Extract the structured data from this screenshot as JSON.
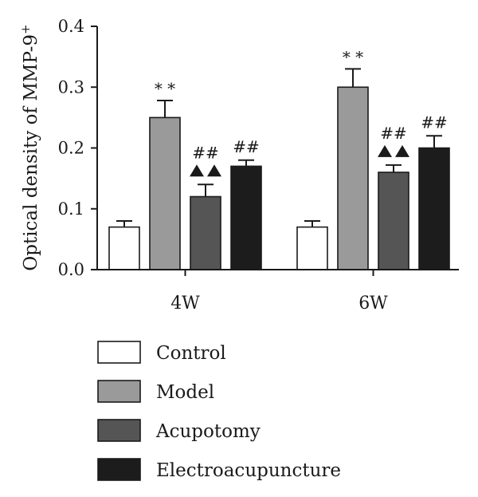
{
  "chart_data": {
    "type": "bar",
    "title": "",
    "xlabel": "",
    "ylabel": "Optical density of MMP-9",
    "ylabel_superscript": "+",
    "ylim": [
      0,
      0.4
    ],
    "yticks": [
      "0.0",
      "0.1",
      "0.2",
      "0.3",
      "0.4"
    ],
    "ytick_values": [
      0,
      0.1,
      0.2,
      0.3,
      0.4
    ],
    "categories": [
      "4W",
      "6W"
    ],
    "grid": false,
    "legend_position": "bottom",
    "series": [
      {
        "name": "Control",
        "values": [
          0.07,
          0.07
        ],
        "errors": [
          0.01,
          0.01
        ],
        "color": "#ffffff",
        "annotations": [
          "",
          ""
        ]
      },
      {
        "name": "Model",
        "values": [
          0.25,
          0.3
        ],
        "errors": [
          0.028,
          0.03
        ],
        "color": "#9a9a9a",
        "annotations": [
          "**",
          "**"
        ]
      },
      {
        "name": "Acupotomy",
        "values": [
          0.12,
          0.16
        ],
        "errors": [
          0.02,
          0.012
        ],
        "color": "#555555",
        "annotations": [
          "##\n▲▲",
          "##\n▲▲"
        ]
      },
      {
        "name": "Electroacupuncture",
        "values": [
          0.17,
          0.2
        ],
        "errors": [
          0.01,
          0.02
        ],
        "color": "#1c1c1c",
        "annotations": [
          "##",
          "##"
        ]
      }
    ]
  }
}
